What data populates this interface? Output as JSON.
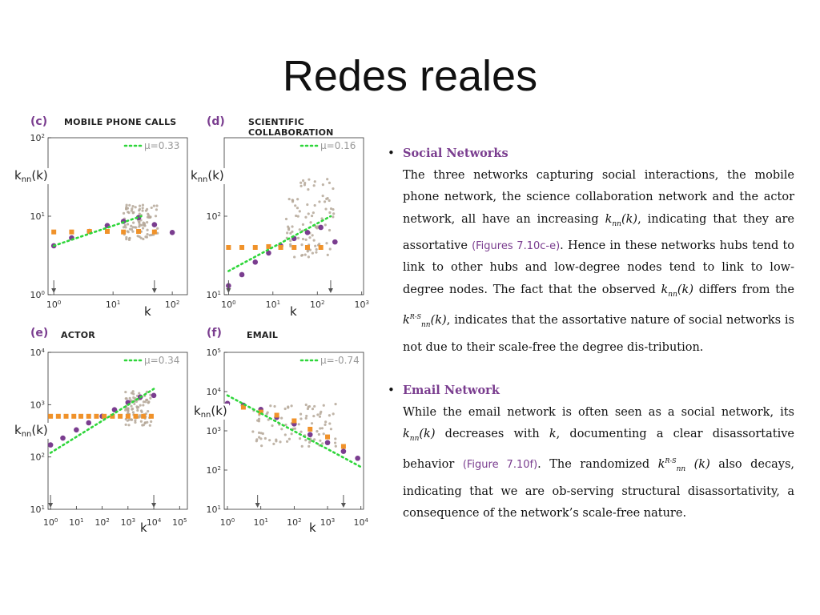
{
  "slide": {
    "title": "Redes reales"
  },
  "axis_symbols": {
    "x_label": "k"
  },
  "chart_data": [
    {
      "type": "scatter",
      "panel_letter": "(c)",
      "title": "MOBILE PHONE CALLS",
      "legend": "μ=0.33",
      "ylabel": "knn(k)",
      "xlabel": "k",
      "log_x": true,
      "log_y": true,
      "xlim": [
        0.8,
        180
      ],
      "ylim": [
        1,
        100
      ],
      "x_ticks": [
        "10^0",
        "10^1",
        "10^2"
      ],
      "y_ticks": [
        "10^0",
        "10^1",
        "10^2"
      ],
      "series": [
        {
          "kind": "empirical",
          "color": "#7a3d8f",
          "x": [
            1,
            2,
            4,
            8,
            15,
            27,
            50,
            100
          ],
          "y": [
            4.2,
            5.3,
            6.4,
            7.6,
            8.6,
            9.6,
            7.8,
            6.2
          ]
        },
        {
          "kind": "randomized",
          "color": "#f0922a",
          "x": [
            1,
            2,
            4,
            8,
            15,
            27,
            50
          ],
          "y": [
            6.3,
            6.3,
            6.4,
            6.4,
            6.3,
            6.4,
            6.3
          ]
        },
        {
          "kind": "fit",
          "color": "#2ed63a",
          "style": "dotted",
          "x": [
            1,
            30
          ],
          "y": [
            4.2,
            10.0
          ]
        }
      ],
      "cloud": {
        "color": "#b5a899",
        "x_range": [
          15,
          60
        ],
        "y_range": [
          5,
          14
        ]
      },
      "markers_x": [
        1,
        50
      ]
    },
    {
      "type": "scatter",
      "panel_letter": "(d)",
      "title": "SCIENTIFIC COLLABORATION",
      "legend": "μ=0.16",
      "ylabel": "knn(k)",
      "xlabel": "k",
      "log_x": true,
      "log_y": true,
      "xlim": [
        0.8,
        1100
      ],
      "ylim": [
        10,
        1000
      ],
      "x_ticks": [
        "10^0",
        "10^1",
        "10^2",
        "10^3"
      ],
      "y_ticks": [
        "10^1",
        "10^2"
      ],
      "series": [
        {
          "kind": "empirical",
          "color": "#7a3d8f",
          "x": [
            1,
            2,
            4,
            8,
            15,
            30,
            60,
            120,
            250
          ],
          "y": [
            13,
            18,
            26,
            34,
            42,
            52,
            62,
            72,
            47
          ]
        },
        {
          "kind": "randomized",
          "color": "#f0922a",
          "x": [
            1,
            2,
            4,
            8,
            15,
            30,
            60,
            120
          ],
          "y": [
            40,
            40,
            40,
            41,
            40,
            40,
            40,
            40
          ]
        },
        {
          "kind": "fit",
          "color": "#2ed63a",
          "style": "dotted",
          "x": [
            1,
            200
          ],
          "y": [
            20,
            100
          ]
        }
      ],
      "cloud": {
        "color": "#b5a899",
        "x_range": [
          20,
          250
        ],
        "y_range": [
          30,
          300
        ]
      },
      "markers_x": [
        1,
        200
      ]
    },
    {
      "type": "scatter",
      "panel_letter": "(e)",
      "title": "ACTOR",
      "legend": "μ=0.34",
      "ylabel": "knn(k)",
      "xlabel": "k",
      "log_x": true,
      "log_y": true,
      "xlim": [
        0.8,
        200000
      ],
      "ylim": [
        10,
        10000
      ],
      "x_ticks": [
        "10^0",
        "10^1",
        "10^2",
        "10^3",
        "10^4",
        "10^5"
      ],
      "y_ticks": [
        "10^1",
        "10^2",
        "10^3",
        "10^4"
      ],
      "series": [
        {
          "kind": "empirical",
          "color": "#7a3d8f",
          "x": [
            1,
            3,
            10,
            30,
            100,
            300,
            1000,
            3000,
            10000
          ],
          "y": [
            170,
            230,
            330,
            450,
            600,
            800,
            1100,
            1400,
            1500
          ]
        },
        {
          "kind": "randomized",
          "color": "#f0922a",
          "x": [
            1,
            2,
            4,
            8,
            15,
            30,
            60,
            120,
            250,
            500,
            1000,
            2000,
            4000,
            8000
          ],
          "y": [
            600,
            600,
            600,
            600,
            600,
            600,
            600,
            600,
            600,
            600,
            600,
            600,
            600,
            600
          ]
        },
        {
          "kind": "fit",
          "color": "#2ed63a",
          "style": "dotted",
          "x": [
            1,
            10000
          ],
          "y": [
            120,
            2000
          ]
        }
      ],
      "cloud": {
        "color": "#b5a899",
        "x_range": [
          800,
          8000
        ],
        "y_range": [
          400,
          1800
        ]
      },
      "markers_x": [
        1,
        10000
      ]
    },
    {
      "type": "scatter",
      "panel_letter": "(f)",
      "title": "EMAIL",
      "legend": "μ=-0.74",
      "ylabel": "knn(k)",
      "xlabel": "k",
      "log_x": true,
      "log_y": true,
      "xlim": [
        0.8,
        12000
      ],
      "ylim": [
        10,
        100000
      ],
      "x_ticks": [
        "10^0",
        "10^1",
        "10^2",
        "10^3",
        "10^4"
      ],
      "y_ticks": [
        "10^1",
        "10^2",
        "10^3",
        "10^4",
        "10^5"
      ],
      "series": [
        {
          "kind": "empirical",
          "color": "#7a3d8f",
          "x": [
            1,
            3,
            10,
            30,
            100,
            300,
            1000,
            3000,
            8000
          ],
          "y": [
            5000,
            4500,
            3500,
            2200,
            1500,
            800,
            500,
            300,
            200
          ]
        },
        {
          "kind": "randomized",
          "color": "#f0922a",
          "x": [
            3,
            10,
            30,
            100,
            300,
            1000,
            3000
          ],
          "y": [
            4000,
            3000,
            2500,
            1800,
            1100,
            700,
            400
          ]
        },
        {
          "kind": "fit",
          "color": "#2ed63a",
          "style": "dotted",
          "x": [
            1,
            10000
          ],
          "y": [
            8000,
            120
          ]
        }
      ],
      "cloud": {
        "color": "#b5a899",
        "x_range": [
          5,
          2000
        ],
        "y_range": [
          400,
          5000
        ]
      },
      "markers_x": [
        8,
        3000
      ]
    }
  ],
  "text": {
    "sections": [
      {
        "title": "Social Networks",
        "p1": "The three networks capturing social interactions, the mobile phone network, the science collaboration network and the actor network, all have an increasing ",
        "m1": "k",
        "m1_sub": "nn",
        "m1_rest": "(k)",
        "p2": ", indicating that they are assortative ",
        "ref": "(Figures 7.10c-e)",
        "p3": ". Hence in these networks hubs tend to link to other hubs and low-degree nodes tend to link to low-degree nodes. The fact that the observed ",
        "m2": "k",
        "m2_sub": "nn",
        "m2_rest": "(k)",
        "p4": " differs from the ",
        "m3": "k",
        "m3_sup": "R-S",
        "m3_sub": "nn",
        "m3_rest": "(k)",
        "p5": ", indicates that the assortative nature of social networks is not due to their scale-free the degree dis-tribution."
      },
      {
        "title": "Email Network",
        "p1": "While the email network is often seen as a social network, its ",
        "m1": "k",
        "m1_sub": "nn",
        "m1_rest": "(k)",
        "p2": " decreases with ",
        "m2": "k",
        "p3": ", documenting a clear disassortative behavior ",
        "ref": "(Figure 7.10f)",
        "p4": ". The randomized ",
        "m3": "k",
        "m3_sup": "R-S",
        "m3_sub": "nn",
        "m3_rest": " (k)",
        "p5": " also decays, indicating that we are ob-serving structural disassortativity, a consequence of the network’s scale-free nature."
      }
    ]
  }
}
